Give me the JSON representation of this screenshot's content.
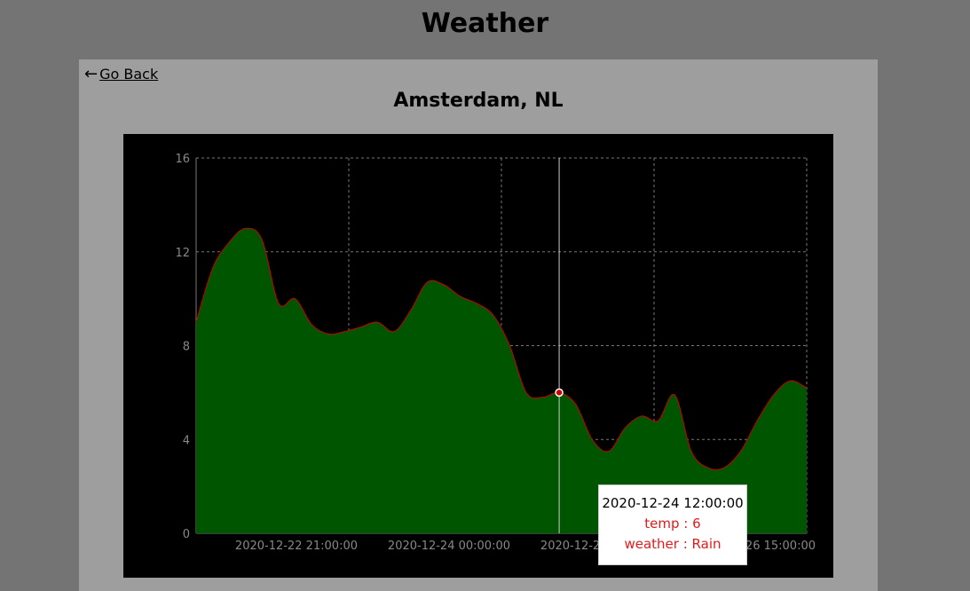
{
  "app": {
    "title": "Weather"
  },
  "nav": {
    "back_arrow": "←",
    "back_label": "Go Back"
  },
  "location": {
    "title": "Amsterdam, NL"
  },
  "colors": {
    "area_fill": "#005500",
    "line": "#cc0000",
    "grid": "#777777",
    "tooltip_accent": "#e41a1a"
  },
  "chart_data": {
    "type": "area",
    "series": [
      {
        "name": "temp",
        "values": [
          9.0,
          11.3,
          12.4,
          13.0,
          12.5,
          9.8,
          10.0,
          8.9,
          8.5,
          8.6,
          8.8,
          9.0,
          8.6,
          9.5,
          10.7,
          10.6,
          10.1,
          9.8,
          9.3,
          8.0,
          6.0,
          5.8,
          6.0,
          5.5,
          4.0,
          3.5,
          4.5,
          5.0,
          4.8,
          5.9,
          3.5,
          2.8,
          2.8,
          3.5,
          4.8,
          5.9,
          6.5,
          6.2
        ]
      }
    ],
    "x_tick_labels": [
      "2020-12-22 21:00:00",
      "2020-12-24 00:00:00",
      "2020-12-25 03:00:00",
      "2020-12-26 15:00:00"
    ],
    "y_tick_labels": [
      "0",
      "4",
      "8",
      "12",
      "16"
    ],
    "ylim": [
      0,
      16
    ],
    "grid": true,
    "tooltip": {
      "time": "2020-12-24 12:00:00",
      "temp_text": "temp : 6",
      "weather_text": "weather : Rain",
      "temp": 6,
      "weather": "Rain"
    }
  }
}
